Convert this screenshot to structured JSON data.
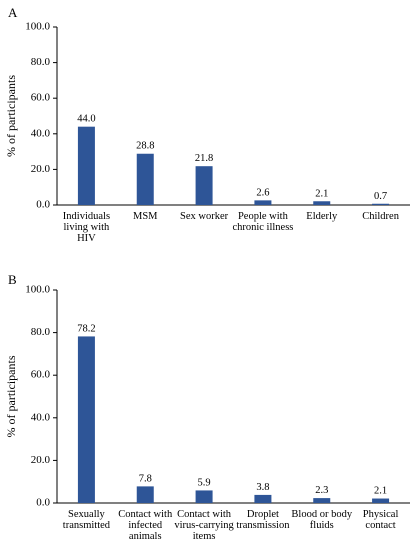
{
  "chart_data": [
    {
      "panel_label": "A",
      "type": "bar",
      "categories": [
        [
          "Individuals",
          "living with",
          "HIV"
        ],
        [
          "MSM"
        ],
        [
          "Sex worker"
        ],
        [
          "People with",
          "chronic illness"
        ],
        [
          "Elderly"
        ],
        [
          "Children"
        ]
      ],
      "values": [
        44.0,
        28.8,
        21.8,
        2.6,
        2.1,
        0.7
      ],
      "data_labels": [
        "44.0",
        "28.8",
        "21.8",
        "2.6",
        "2.1",
        "0.7"
      ],
      "ylabel": "% of participants",
      "ylim": [
        0,
        100
      ],
      "yticks": [
        "0.0",
        "20.0",
        "40.0",
        "60.0",
        "80.0",
        "100.0"
      ],
      "grid": false,
      "bar_color": "#2e5597"
    },
    {
      "panel_label": "B",
      "type": "bar",
      "categories": [
        [
          "Sexually",
          "transmitted"
        ],
        [
          "Contact with",
          "infected",
          "animals"
        ],
        [
          "Contact with",
          "virus-carrying",
          "items"
        ],
        [
          "Droplet",
          "transmission"
        ],
        [
          "Blood or body",
          "fluids"
        ],
        [
          "Physical",
          "contact"
        ]
      ],
      "values": [
        78.2,
        7.8,
        5.9,
        3.8,
        2.3,
        2.1
      ],
      "data_labels": [
        "78.2",
        "7.8",
        "5.9",
        "3.8",
        "2.3",
        "2.1"
      ],
      "ylabel": "% of participants",
      "ylim": [
        0,
        100
      ],
      "yticks": [
        "0.0",
        "20.0",
        "40.0",
        "60.0",
        "80.0",
        "100.0"
      ],
      "grid": false,
      "bar_color": "#2e5597"
    }
  ]
}
